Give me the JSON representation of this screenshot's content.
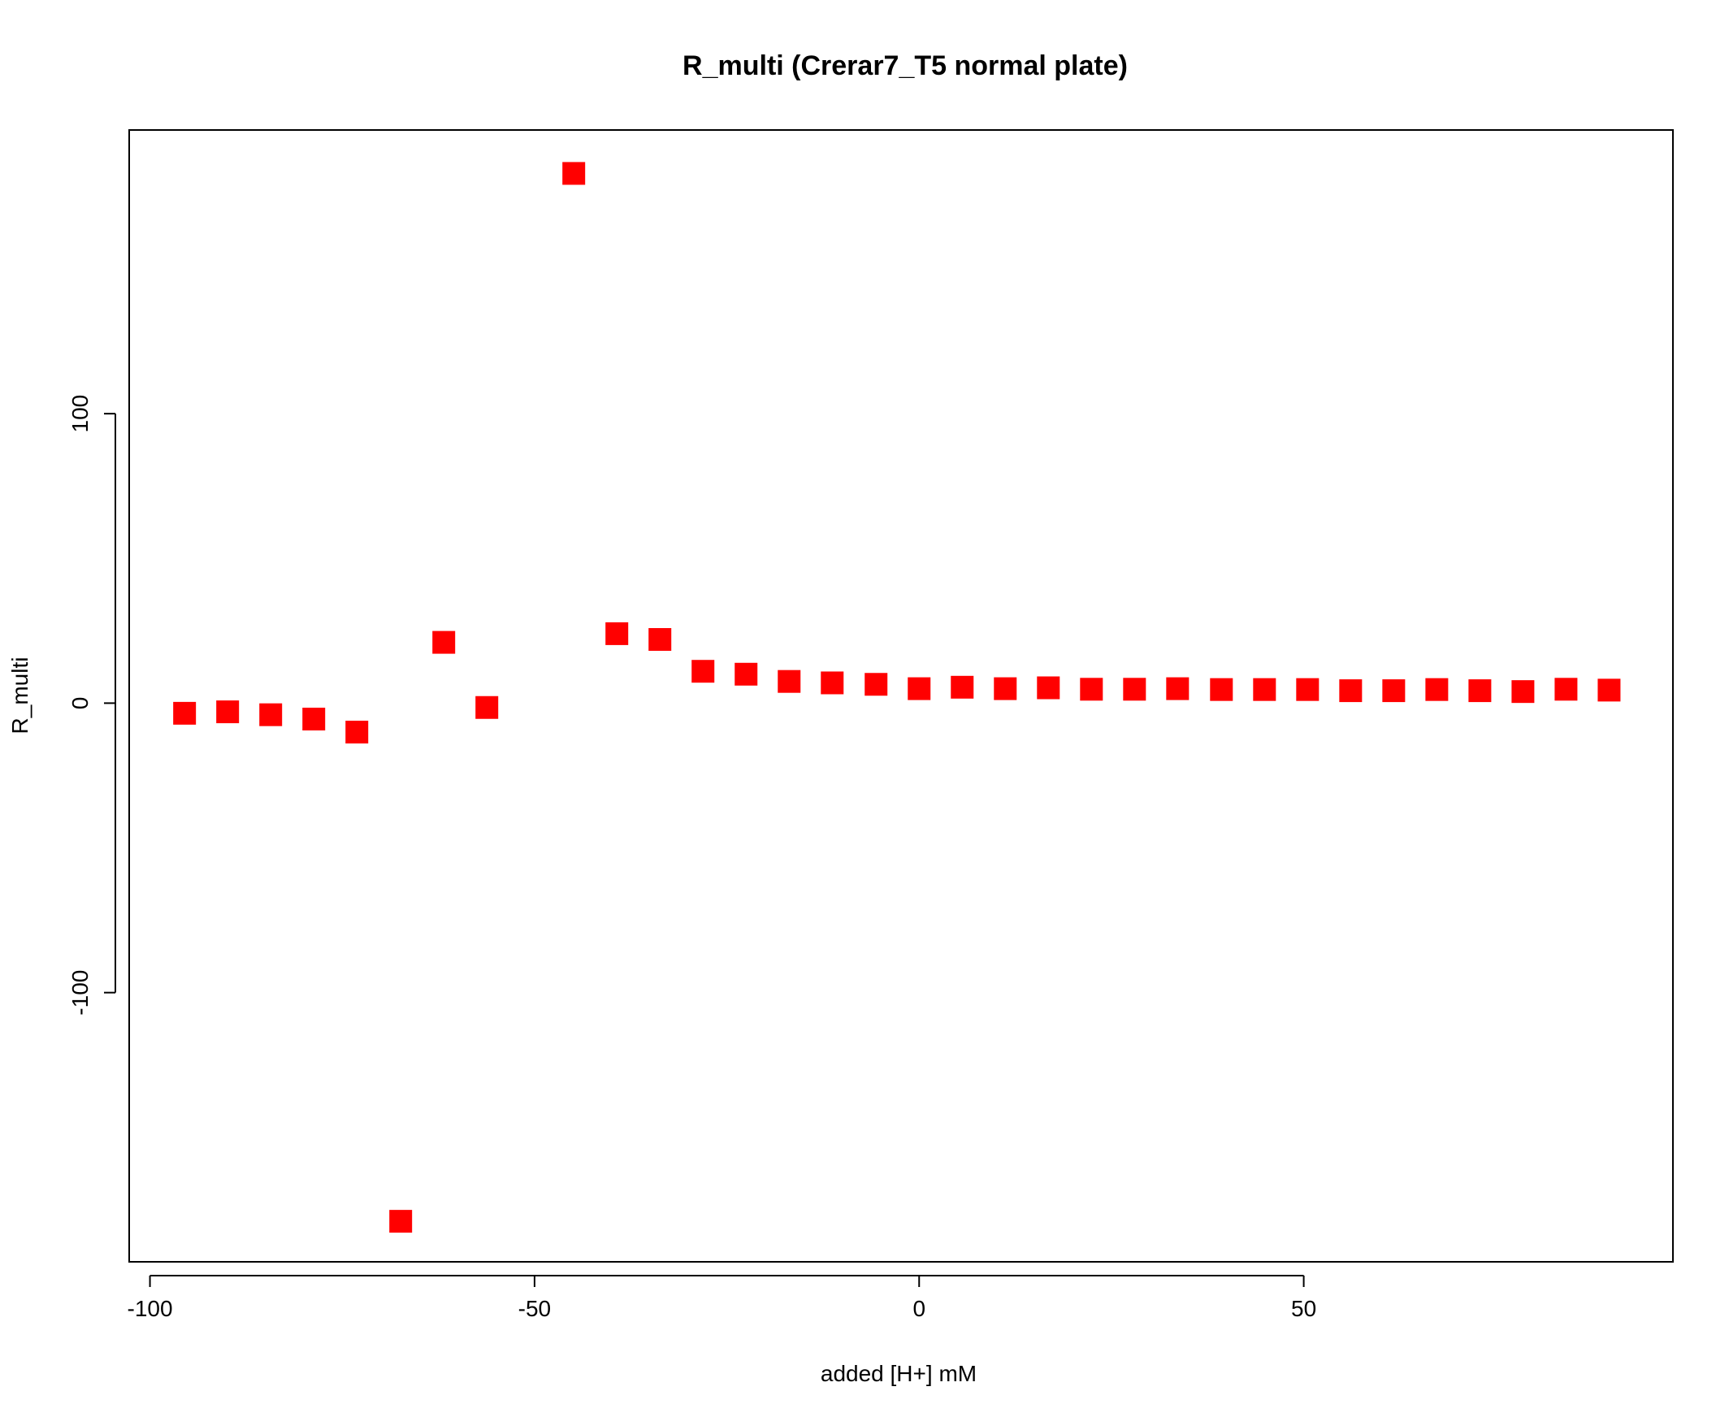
{
  "chart_data": {
    "type": "scatter",
    "title": "R_multi (Crerar7_T5 normal plate)",
    "xlabel": "added [H+] mM",
    "ylabel": "R_multi",
    "xlim": [
      -102.7,
      98.0
    ],
    "ylim": [
      -193.0,
      198.0
    ],
    "x_ticks": [
      -100,
      -50,
      0,
      50
    ],
    "x_tick_labels": [
      "-100",
      "-50",
      "0",
      "50"
    ],
    "y_ticks": [
      -100,
      0,
      100
    ],
    "y_tick_labels": [
      "-100",
      "0",
      "100"
    ],
    "grid": false,
    "legend": "none",
    "marker": "square",
    "color": "#ff0000",
    "series": [
      {
        "x": [
          -95.5,
          -89.9,
          -84.3,
          -78.7,
          -73.1,
          -67.4,
          -61.8,
          -56.2,
          -44.9,
          -39.3,
          -33.7,
          -28.1,
          -22.5,
          -16.9,
          -11.3,
          -5.6,
          0.0,
          5.6,
          11.2,
          16.8,
          22.4,
          28.0,
          33.6,
          39.3,
          44.9,
          50.5,
          56.1,
          61.7,
          67.3,
          72.9,
          78.5,
          84.1,
          89.7
        ],
        "y": [
          -3.5,
          -3.0,
          -4.0,
          -5.5,
          -10.0,
          -179.0,
          21.0,
          -1.5,
          183.0,
          24.0,
          22.0,
          11.0,
          10.0,
          7.5,
          7.0,
          6.5,
          5.0,
          5.5,
          5.0,
          5.3,
          4.8,
          4.8,
          5.0,
          4.7,
          4.7,
          4.7,
          4.3,
          4.3,
          4.7,
          4.3,
          4.0,
          4.8,
          4.5
        ]
      }
    ]
  }
}
